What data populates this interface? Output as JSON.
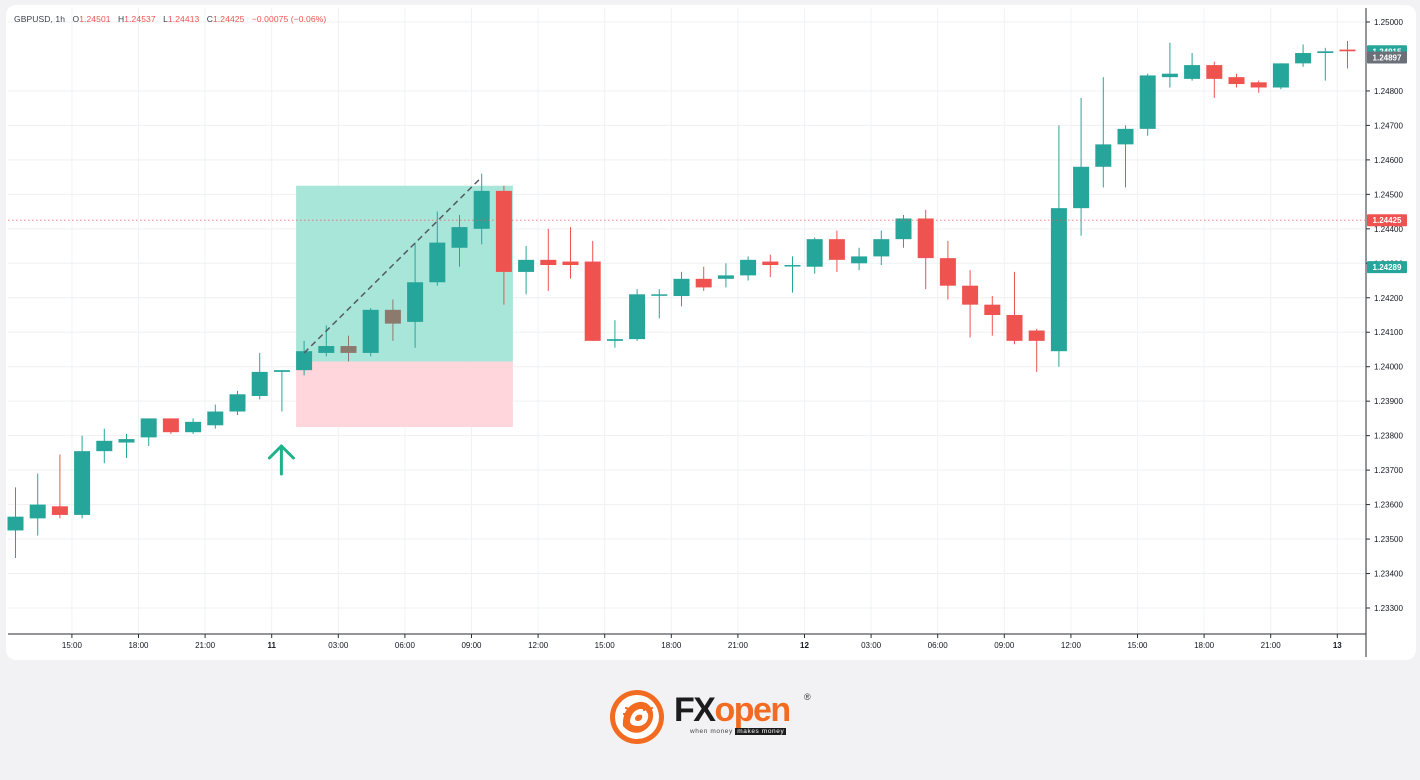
{
  "legend": {
    "symbol": "GBPUSD, 1h",
    "open_label": "O",
    "open": "1.24501",
    "high_label": "H",
    "high": "1.24537",
    "low_label": "L",
    "low": "1.24413",
    "close_label": "C",
    "close": "1.24425",
    "change": "−0.00075 (−0.06%)"
  },
  "colors": {
    "up": "#26a69a",
    "down": "#ef5350",
    "neutral": "#8d7a6e",
    "profit_zone": "#a8e6d9",
    "loss_zone": "#ffd6dc",
    "arrow": "#1fb28a",
    "brand": "#f26b21"
  },
  "chart_data": {
    "type": "candlestick",
    "symbol": "GBPUSD",
    "interval": "1h",
    "ylim": [
      1.2322,
      1.2508
    ],
    "y_ticks": [
      "1.23300",
      "1.23400",
      "1.23500",
      "1.23600",
      "1.23700",
      "1.23800",
      "1.23900",
      "1.24000",
      "1.24100",
      "1.24200",
      "1.24300",
      "1.24400",
      "1.24500",
      "1.24600",
      "1.24700",
      "1.24800",
      "1.25000"
    ],
    "x_ticks": [
      {
        "label": "15:00",
        "index": 2,
        "bold": false
      },
      {
        "label": "18:00",
        "index": 5,
        "bold": false
      },
      {
        "label": "21:00",
        "index": 8,
        "bold": false
      },
      {
        "label": "11",
        "index": 11,
        "bold": true
      },
      {
        "label": "03:00",
        "index": 14,
        "bold": false
      },
      {
        "label": "06:00",
        "index": 17,
        "bold": false
      },
      {
        "label": "09:00",
        "index": 20,
        "bold": false
      },
      {
        "label": "12:00",
        "index": 23,
        "bold": false
      },
      {
        "label": "15:00",
        "index": 26,
        "bold": false
      },
      {
        "label": "18:00",
        "index": 29,
        "bold": false
      },
      {
        "label": "21:00",
        "index": 32,
        "bold": false
      },
      {
        "label": "12",
        "index": 35,
        "bold": true
      },
      {
        "label": "03:00",
        "index": 38,
        "bold": false
      },
      {
        "label": "06:00",
        "index": 41,
        "bold": false
      },
      {
        "label": "09:00",
        "index": 44,
        "bold": false
      },
      {
        "label": "12:00",
        "index": 47,
        "bold": false
      },
      {
        "label": "15:00",
        "index": 50,
        "bold": false
      },
      {
        "label": "18:00",
        "index": 53,
        "bold": false
      },
      {
        "label": "21:00",
        "index": 56,
        "bold": false
      },
      {
        "label": "13",
        "index": 59,
        "bold": true
      }
    ],
    "candles": [
      {
        "o": 1.23525,
        "h": 1.2365,
        "l": 1.23445,
        "c": 1.23565
      },
      {
        "o": 1.2356,
        "h": 1.2369,
        "l": 1.2351,
        "c": 1.236
      },
      {
        "o": 1.23595,
        "h": 1.23745,
        "l": 1.2356,
        "c": 1.2357
      },
      {
        "o": 1.2357,
        "h": 1.238,
        "l": 1.2356,
        "c": 1.23755
      },
      {
        "o": 1.23755,
        "h": 1.2382,
        "l": 1.2372,
        "c": 1.23785
      },
      {
        "o": 1.2378,
        "h": 1.23805,
        "l": 1.23735,
        "c": 1.2379
      },
      {
        "o": 1.23795,
        "h": 1.2385,
        "l": 1.2377,
        "c": 1.2385
      },
      {
        "o": 1.2385,
        "h": 1.2385,
        "l": 1.23805,
        "c": 1.2381
      },
      {
        "o": 1.2381,
        "h": 1.2385,
        "l": 1.23805,
        "c": 1.2384
      },
      {
        "o": 1.2383,
        "h": 1.2389,
        "l": 1.2382,
        "c": 1.2387
      },
      {
        "o": 1.2387,
        "h": 1.2393,
        "l": 1.2386,
        "c": 1.2392
      },
      {
        "o": 1.23915,
        "h": 1.2404,
        "l": 1.23905,
        "c": 1.23985
      },
      {
        "o": 1.23985,
        "h": 1.2399,
        "l": 1.2387,
        "c": 1.2399
      },
      {
        "o": 1.2399,
        "h": 1.24075,
        "l": 1.23975,
        "c": 1.24045
      },
      {
        "o": 1.2404,
        "h": 1.2412,
        "l": 1.2403,
        "c": 1.2406
      },
      {
        "o": 1.2406,
        "h": 1.2409,
        "l": 1.24015,
        "c": 1.2404,
        "neutral": true
      },
      {
        "o": 1.2404,
        "h": 1.2417,
        "l": 1.2403,
        "c": 1.24165
      },
      {
        "o": 1.24165,
        "h": 1.24195,
        "l": 1.24075,
        "c": 1.24125,
        "neutral": true
      },
      {
        "o": 1.2413,
        "h": 1.2436,
        "l": 1.24055,
        "c": 1.24245
      },
      {
        "o": 1.24245,
        "h": 1.2445,
        "l": 1.24235,
        "c": 1.2436
      },
      {
        "o": 1.24345,
        "h": 1.2444,
        "l": 1.2429,
        "c": 1.24405
      },
      {
        "o": 1.244,
        "h": 1.2456,
        "l": 1.24355,
        "c": 1.2451
      },
      {
        "o": 1.2451,
        "h": 1.24525,
        "l": 1.2418,
        "c": 1.24275
      },
      {
        "o": 1.24275,
        "h": 1.2435,
        "l": 1.2421,
        "c": 1.2431
      },
      {
        "o": 1.2431,
        "h": 1.244,
        "l": 1.2422,
        "c": 1.24295
      },
      {
        "o": 1.24305,
        "h": 1.24405,
        "l": 1.24255,
        "c": 1.24295
      },
      {
        "o": 1.24305,
        "h": 1.24365,
        "l": 1.24075,
        "c": 1.24075
      },
      {
        "o": 1.24075,
        "h": 1.24135,
        "l": 1.24055,
        "c": 1.2408
      },
      {
        "o": 1.2408,
        "h": 1.24225,
        "l": 1.24075,
        "c": 1.2421
      },
      {
        "o": 1.2421,
        "h": 1.24225,
        "l": 1.2414,
        "c": 1.2421
      },
      {
        "o": 1.24205,
        "h": 1.24275,
        "l": 1.24175,
        "c": 1.24255
      },
      {
        "o": 1.24255,
        "h": 1.2429,
        "l": 1.2422,
        "c": 1.2423
      },
      {
        "o": 1.24255,
        "h": 1.243,
        "l": 1.2423,
        "c": 1.24265
      },
      {
        "o": 1.24265,
        "h": 1.2432,
        "l": 1.2425,
        "c": 1.2431
      },
      {
        "o": 1.24305,
        "h": 1.24325,
        "l": 1.2426,
        "c": 1.24295
      },
      {
        "o": 1.24295,
        "h": 1.2432,
        "l": 1.24215,
        "c": 1.24295
      },
      {
        "o": 1.2429,
        "h": 1.24375,
        "l": 1.2427,
        "c": 1.2437
      },
      {
        "o": 1.2437,
        "h": 1.24395,
        "l": 1.24275,
        "c": 1.2431
      },
      {
        "o": 1.243,
        "h": 1.24345,
        "l": 1.2428,
        "c": 1.2432
      },
      {
        "o": 1.2432,
        "h": 1.24395,
        "l": 1.24295,
        "c": 1.2437
      },
      {
        "o": 1.2437,
        "h": 1.2444,
        "l": 1.24345,
        "c": 1.2443
      },
      {
        "o": 1.2443,
        "h": 1.24455,
        "l": 1.24225,
        "c": 1.24315
      },
      {
        "o": 1.24315,
        "h": 1.24365,
        "l": 1.24195,
        "c": 1.24235
      },
      {
        "o": 1.24235,
        "h": 1.2428,
        "l": 1.24085,
        "c": 1.2418
      },
      {
        "o": 1.2418,
        "h": 1.24205,
        "l": 1.2409,
        "c": 1.2415
      },
      {
        "o": 1.2415,
        "h": 1.24275,
        "l": 1.24065,
        "c": 1.24075
      },
      {
        "o": 1.24105,
        "h": 1.2411,
        "l": 1.23985,
        "c": 1.24075
      },
      {
        "o": 1.24045,
        "h": 1.247,
        "l": 1.24,
        "c": 1.2446
      },
      {
        "o": 1.2446,
        "h": 1.2478,
        "l": 1.2438,
        "c": 1.2458
      },
      {
        "o": 1.2458,
        "h": 1.2484,
        "l": 1.2452,
        "c": 1.24645
      },
      {
        "o": 1.24645,
        "h": 1.247,
        "l": 1.2452,
        "c": 1.2469
      },
      {
        "o": 1.2469,
        "h": 1.2485,
        "l": 1.2467,
        "c": 1.24845
      },
      {
        "o": 1.2484,
        "h": 1.2494,
        "l": 1.2481,
        "c": 1.2485
      },
      {
        "o": 1.24835,
        "h": 1.2491,
        "l": 1.2483,
        "c": 1.24875
      },
      {
        "o": 1.24875,
        "h": 1.24885,
        "l": 1.2478,
        "c": 1.24835
      },
      {
        "o": 1.2484,
        "h": 1.2485,
        "l": 1.2481,
        "c": 1.2482
      },
      {
        "o": 1.24825,
        "h": 1.2483,
        "l": 1.24795,
        "c": 1.2481
      },
      {
        "o": 1.2481,
        "h": 1.2488,
        "l": 1.24805,
        "c": 1.2488
      },
      {
        "o": 1.2488,
        "h": 1.24935,
        "l": 1.2487,
        "c": 1.2491
      },
      {
        "o": 1.2491,
        "h": 1.24925,
        "l": 1.2483,
        "c": 1.24915
      },
      {
        "o": 1.2492,
        "h": 1.24945,
        "l": 1.24865,
        "c": 1.24915
      }
    ],
    "price_labels": [
      {
        "value": "1.24915",
        "price": 1.24915,
        "color": "#26a69a"
      },
      {
        "value": "1.24897",
        "price": 1.24897,
        "color": "#6b6f78"
      },
      {
        "value": "1.24425",
        "price": 1.24425,
        "color": "#ef5350"
      },
      {
        "value": "1.24289",
        "price": 1.24289,
        "color": "#26a69a"
      }
    ],
    "current_price_line": 1.24425,
    "position_tool": {
      "start_index": 13,
      "end_index": 22,
      "entry": 1.24015,
      "target": 1.24525,
      "stop": 1.23825,
      "trend_start": {
        "index": 13,
        "price": 1.2404
      },
      "trend_end": {
        "index": 21,
        "price": 1.2455
      }
    },
    "marker_index": 12
  },
  "logo": {
    "fx": "FX",
    "open": "open",
    "reg": "®",
    "tagline_a": "when money",
    "tagline_b": "makes money"
  }
}
